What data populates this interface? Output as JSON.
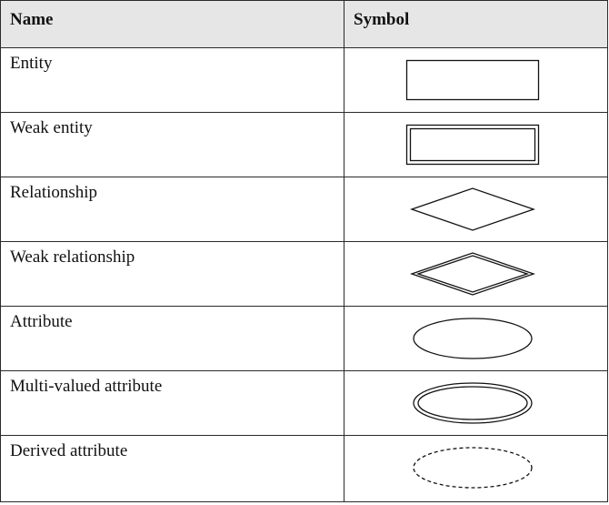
{
  "table": {
    "headers": {
      "name": "Name",
      "symbol": "Symbol"
    },
    "rows": [
      {
        "name": "Entity",
        "symbol_icon": "rectangle-icon"
      },
      {
        "name": "Weak entity",
        "symbol_icon": "double-rectangle-icon"
      },
      {
        "name": "Relationship",
        "symbol_icon": "diamond-icon"
      },
      {
        "name": "Weak relationship",
        "symbol_icon": "double-diamond-icon"
      },
      {
        "name": "Attribute",
        "symbol_icon": "ellipse-icon"
      },
      {
        "name": "Multi-valued attribute",
        "symbol_icon": "double-ellipse-icon"
      },
      {
        "name": "Derived attribute",
        "symbol_icon": "dashed-ellipse-icon"
      }
    ]
  }
}
